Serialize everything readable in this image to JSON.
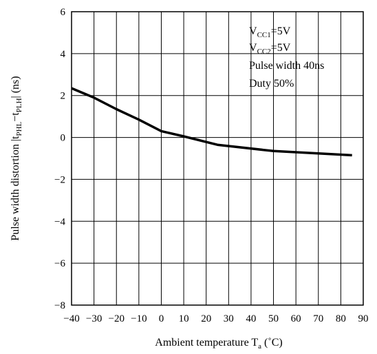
{
  "chart_data": {
    "type": "line",
    "xlim": [
      -40,
      90
    ],
    "ylim": [
      -8,
      6
    ],
    "x_ticks": [
      -40,
      -30,
      -20,
      -10,
      0,
      10,
      20,
      30,
      40,
      50,
      60,
      70,
      80,
      90
    ],
    "y_ticks": [
      6,
      4,
      2,
      0,
      -2,
      -4,
      -6,
      -8
    ],
    "x_tick_labels": [
      "−40",
      "−30",
      "−20",
      "−10",
      "0",
      "10",
      "20",
      "30",
      "40",
      "50",
      "60",
      "70",
      "80",
      "90"
    ],
    "y_tick_labels": [
      "6",
      "4",
      "2",
      "0",
      "−2",
      "−4",
      "−6",
      "−8"
    ],
    "grid": true,
    "xlabel": {
      "main": "Ambient temperature T",
      "sub": "a",
      "unit": " (˚C)"
    },
    "ylabel": {
      "p1": "Pulse width distortion |t",
      "s1": "PHL",
      "p2": "−t",
      "s2": "PLH",
      "p3": "| (ns)"
    },
    "annotations": [
      {
        "main": "V",
        "sub": "CC1",
        "rest": "=5V"
      },
      {
        "main": "V",
        "sub": "CC2",
        "rest": "=5V"
      },
      {
        "main": "Pulse width 40ns",
        "sub": "",
        "rest": ""
      },
      {
        "main": "Duty 50%",
        "sub": "",
        "rest": ""
      }
    ],
    "series": [
      {
        "x": [
          -40,
          -30,
          -20,
          -10,
          0,
          10,
          25,
          50,
          85
        ],
        "y": [
          2.35,
          1.9,
          1.35,
          0.85,
          0.3,
          0.05,
          -0.35,
          -0.65,
          -0.85
        ]
      }
    ]
  }
}
